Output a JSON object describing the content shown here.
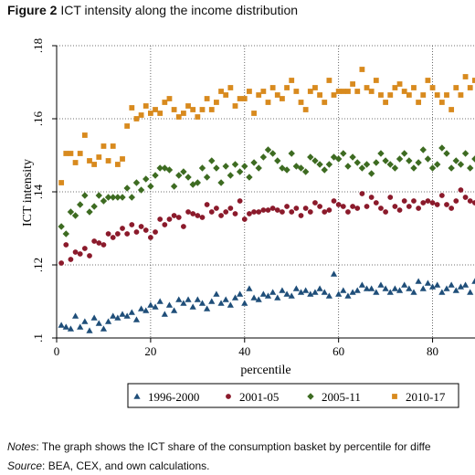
{
  "figure": {
    "label": "Figure 2",
    "title": "ICT intensity along the income distribution"
  },
  "notes": {
    "notes_label": "Notes",
    "notes_text": ": The graph shows the ICT share of the consumption basket by percentile for diffe",
    "source_label": "Source",
    "source_text": ": BEA, CEX, and own calculations."
  },
  "chart_data": {
    "type": "scatter",
    "xlabel": "percentile",
    "ylabel": "ICT intensity",
    "xlim": [
      0,
      90
    ],
    "ylim": [
      0.1,
      0.18
    ],
    "xticks": [
      0,
      20,
      40,
      60,
      80
    ],
    "xtick_labels": [
      "0",
      "20",
      "40",
      "60",
      "80"
    ],
    "yticks": [
      0.1,
      0.12,
      0.14,
      0.16,
      0.18
    ],
    "ytick_labels": [
      ".1",
      ".12",
      ".14",
      ".16",
      ".18"
    ],
    "grid": "horizontal dotted",
    "legend_position": "bottom",
    "x": [
      1,
      2,
      3,
      4,
      5,
      6,
      7,
      8,
      9,
      10,
      11,
      12,
      13,
      14,
      15,
      16,
      17,
      18,
      19,
      20,
      21,
      22,
      23,
      24,
      25,
      26,
      27,
      28,
      29,
      30,
      31,
      32,
      33,
      34,
      35,
      36,
      37,
      38,
      39,
      40,
      41,
      42,
      43,
      44,
      45,
      46,
      47,
      48,
      49,
      50,
      51,
      52,
      53,
      54,
      55,
      56,
      57,
      58,
      59,
      60,
      61,
      62,
      63,
      64,
      65,
      66,
      67,
      68,
      69,
      70,
      71,
      72,
      73,
      74,
      75,
      76,
      77,
      78,
      79,
      80,
      81,
      82,
      83,
      84,
      85,
      86,
      87,
      88,
      89,
      90
    ],
    "series": [
      {
        "name": "1996-2000",
        "marker": "triangle",
        "color": "#1f4e79",
        "values": [
          0.1035,
          0.103,
          0.1025,
          0.106,
          0.103,
          0.1045,
          0.102,
          0.1055,
          0.104,
          0.1025,
          0.1045,
          0.106,
          0.1055,
          0.1065,
          0.106,
          0.107,
          0.105,
          0.108,
          0.1075,
          0.109,
          0.1085,
          0.11,
          0.1065,
          0.109,
          0.1075,
          0.1105,
          0.1095,
          0.1105,
          0.1085,
          0.1105,
          0.1095,
          0.108,
          0.11,
          0.112,
          0.1095,
          0.1105,
          0.109,
          0.111,
          0.112,
          0.1095,
          0.1135,
          0.111,
          0.1105,
          0.112,
          0.1115,
          0.1125,
          0.111,
          0.113,
          0.112,
          0.1115,
          0.1135,
          0.1125,
          0.113,
          0.112,
          0.1125,
          0.1135,
          0.1125,
          0.1115,
          0.1175,
          0.112,
          0.113,
          0.1115,
          0.1125,
          0.113,
          0.1145,
          0.1135,
          0.1135,
          0.1125,
          0.1145,
          0.1135,
          0.1125,
          0.1135,
          0.113,
          0.1145,
          0.1135,
          0.1125,
          0.1155,
          0.1135,
          0.115,
          0.114,
          0.1145,
          0.1125,
          0.1135,
          0.1145,
          0.113,
          0.114,
          0.1145,
          0.1125,
          0.1155,
          0.1145
        ]
      },
      {
        "name": "2001-05",
        "marker": "circle",
        "color": "#8b1a2b",
        "values": [
          0.1205,
          0.1255,
          0.1215,
          0.1235,
          0.123,
          0.1245,
          0.1225,
          0.1265,
          0.126,
          0.1255,
          0.1285,
          0.1275,
          0.1285,
          0.13,
          0.1285,
          0.131,
          0.129,
          0.1305,
          0.1295,
          0.1275,
          0.129,
          0.1325,
          0.131,
          0.1325,
          0.1335,
          0.133,
          0.1305,
          0.1345,
          0.134,
          0.1335,
          0.133,
          0.1365,
          0.1345,
          0.1355,
          0.1335,
          0.1345,
          0.1355,
          0.134,
          0.1375,
          0.1325,
          0.134,
          0.1345,
          0.1345,
          0.135,
          0.135,
          0.1355,
          0.135,
          0.1345,
          0.136,
          0.1345,
          0.1355,
          0.1335,
          0.1355,
          0.1345,
          0.137,
          0.136,
          0.1345,
          0.135,
          0.1375,
          0.1365,
          0.136,
          0.1345,
          0.136,
          0.1355,
          0.1395,
          0.136,
          0.1385,
          0.137,
          0.1355,
          0.1345,
          0.1385,
          0.136,
          0.135,
          0.1375,
          0.136,
          0.1375,
          0.1355,
          0.137,
          0.1375,
          0.137,
          0.1365,
          0.139,
          0.1365,
          0.1355,
          0.1375,
          0.1405,
          0.1385,
          0.1375,
          0.137,
          0.137
        ]
      },
      {
        "name": "2005-11",
        "marker": "diamond",
        "color": "#3d6b21",
        "values": [
          0.1305,
          0.1285,
          0.1345,
          0.1335,
          0.1365,
          0.139,
          0.1345,
          0.136,
          0.139,
          0.1375,
          0.1385,
          0.1385,
          0.1385,
          0.1385,
          0.141,
          0.1385,
          0.1425,
          0.1405,
          0.1435,
          0.1415,
          0.1445,
          0.1465,
          0.1465,
          0.146,
          0.1415,
          0.1445,
          0.1455,
          0.144,
          0.142,
          0.1425,
          0.1465,
          0.144,
          0.1485,
          0.1465,
          0.1425,
          0.147,
          0.1445,
          0.1475,
          0.1455,
          0.147,
          0.144,
          0.148,
          0.1465,
          0.1495,
          0.1515,
          0.1505,
          0.1485,
          0.1465,
          0.146,
          0.1505,
          0.147,
          0.1465,
          0.1455,
          0.1495,
          0.1485,
          0.1475,
          0.146,
          0.1475,
          0.1495,
          0.149,
          0.1505,
          0.147,
          0.1495,
          0.148,
          0.1465,
          0.1475,
          0.145,
          0.148,
          0.1505,
          0.1485,
          0.1475,
          0.1465,
          0.149,
          0.1505,
          0.1485,
          0.1465,
          0.148,
          0.1515,
          0.149,
          0.1465,
          0.1475,
          0.152,
          0.1505,
          0.1465,
          0.1485,
          0.1475,
          0.1505,
          0.1465,
          0.149,
          0.1515
        ]
      },
      {
        "name": "2010-17",
        "marker": "square",
        "color": "#d88a1e",
        "values": [
          0.1425,
          0.1505,
          0.1505,
          0.148,
          0.1505,
          0.1555,
          0.1485,
          0.1475,
          0.1495,
          0.1525,
          0.1485,
          0.1525,
          0.1475,
          0.149,
          0.158,
          0.163,
          0.16,
          0.161,
          0.1635,
          0.1615,
          0.1625,
          0.1615,
          0.1645,
          0.1655,
          0.1625,
          0.1605,
          0.1615,
          0.1635,
          0.1625,
          0.1605,
          0.1625,
          0.1655,
          0.1625,
          0.1645,
          0.1675,
          0.1665,
          0.1685,
          0.1635,
          0.1655,
          0.1655,
          0.1675,
          0.1615,
          0.1665,
          0.1675,
          0.1645,
          0.1685,
          0.1665,
          0.1655,
          0.1685,
          0.1705,
          0.1675,
          0.1645,
          0.1625,
          0.1675,
          0.1685,
          0.1665,
          0.1645,
          0.1705,
          0.1665,
          0.1675,
          0.1675,
          0.1675,
          0.1695,
          0.1675,
          0.1735,
          0.1685,
          0.1675,
          0.1705,
          0.1665,
          0.1645,
          0.1665,
          0.1685,
          0.1695,
          0.1675,
          0.1665,
          0.1685,
          0.1645,
          0.1665,
          0.1705,
          0.1685,
          0.1665,
          0.1645,
          0.1665,
          0.1625,
          0.1685,
          0.1665,
          0.1715,
          0.1685,
          0.1705,
          0.1715
        ]
      }
    ]
  }
}
